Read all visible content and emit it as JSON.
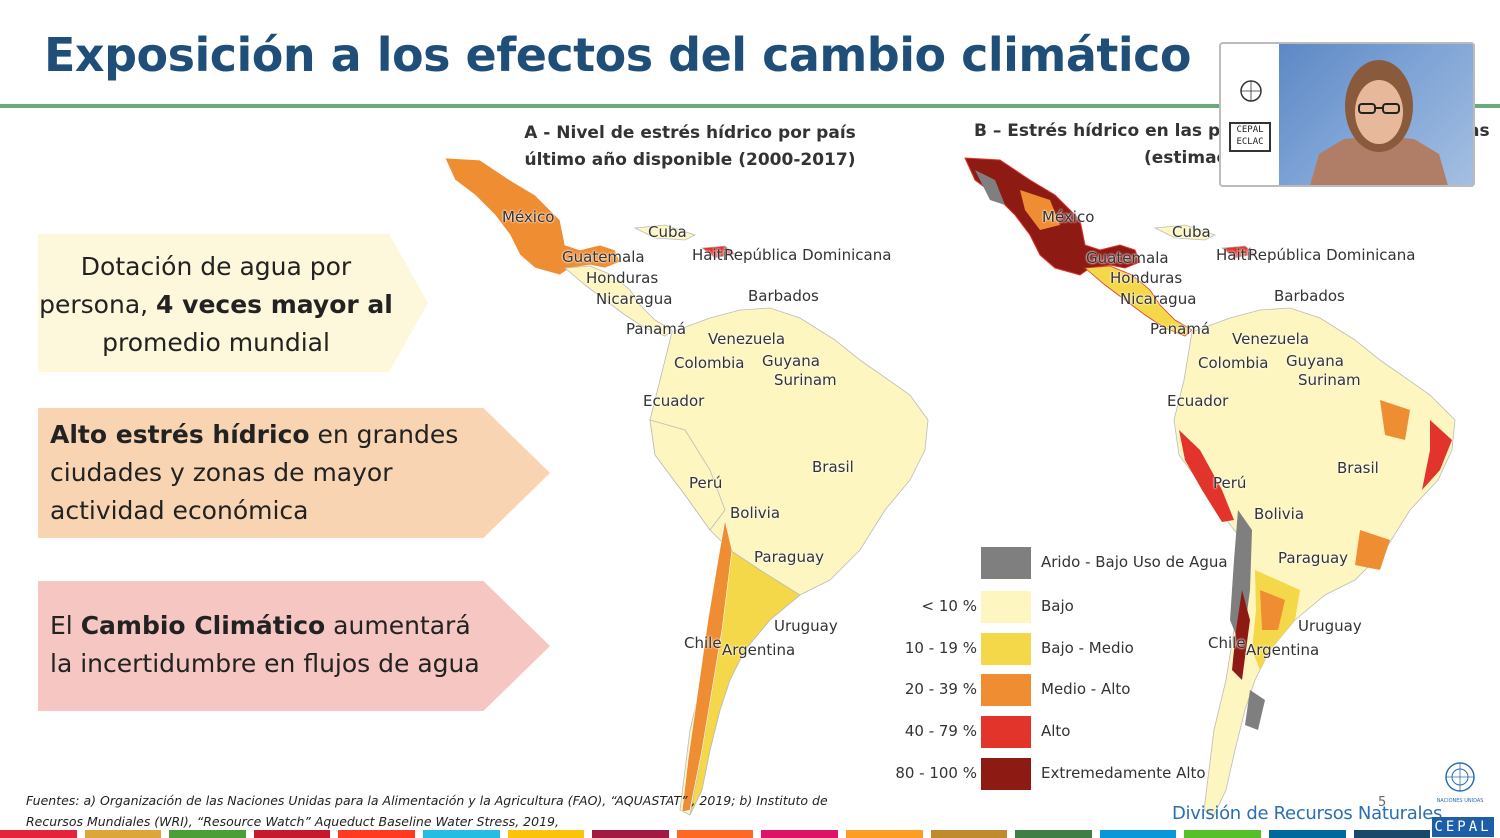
{
  "slide": {
    "title": "Exposición a los efectos del cambio climático",
    "page_number": "5"
  },
  "boxes": [
    {
      "pre": "Dotación de agua por persona, ",
      "bold": "4 veces mayor al",
      "post": " promedio mundial",
      "color": "#fdf8dc"
    },
    {
      "pre": "",
      "bold": "Alto estrés hídrico",
      "post": " en grandes ciudades y zonas de mayor actividad económica",
      "color": "#f9d4b3"
    },
    {
      "pre": "El ",
      "bold": "Cambio Climático",
      "post": " aumentará la incertidumbre en flujos de agua",
      "color": "#f6c6c3"
    }
  ],
  "map_a": {
    "title_line1": "A - Nivel de estrés hídrico por país",
    "title_line2": "último año disponible (2000-2017)"
  },
  "map_b": {
    "title_line1": "B – Estrés hídrico en las pri",
    "title_line1_end": "as",
    "title_line2": "(estimac"
  },
  "country_labels": {
    "mexico": "México",
    "cuba": "Cuba",
    "guatemala": "Guatemala",
    "haiti": "Haití",
    "republica_dominicana": "República Dominicana",
    "honduras": "Honduras",
    "nicaragua": "Nicaragua",
    "barbados": "Barbados",
    "panama": "Panamá",
    "venezuela": "Venezuela",
    "colombia": "Colombia",
    "guyana": "Guyana",
    "surinam": "Surinam",
    "ecuador": "Ecuador",
    "brasil": "Brasil",
    "peru": "Perú",
    "bolivia": "Bolivia",
    "paraguay": "Paraguay",
    "uruguay": "Uruguay",
    "chile": "Chile",
    "argentina": "Argentina"
  },
  "legend": [
    {
      "range": "",
      "label": "Arido - Bajo Uso de Agua",
      "color": "#7f7f7f"
    },
    {
      "range": "< 10 %",
      "label": "Bajo",
      "color": "#fdf6c0"
    },
    {
      "range": "10 - 19 %",
      "label": "Bajo - Medio",
      "color": "#f5d84a"
    },
    {
      "range": "20 - 39 %",
      "label": "Medio - Alto",
      "color": "#ef8d33"
    },
    {
      "range": "40 - 79 %",
      "label": "Alto",
      "color": "#e2342a"
    },
    {
      "range": "80 - 100 %",
      "label": "Extremedamente Alto",
      "color": "#8e1a14"
    }
  ],
  "sources": {
    "line1": "Fuentes: a) Organización de las Naciones Unidas para la Alimentación y la Agricultura (FAO),  “AQUASTAT” , 2019;  b) Instituto de",
    "line2": "Recursos Mundiales (WRI), “Resource Watch”  Aqueduct Baseline Water Stress, 2019,"
  },
  "footer": {
    "division": "División de Recursos Naturales",
    "cepal": "CEPAL",
    "un_caption": "NACIONES UNIDAS"
  },
  "video": {
    "cepal_line1": "CEPAL",
    "cepal_line2": "ECLAC"
  },
  "colors": {
    "title": "#1f4e79",
    "rule": "#6aaa7c",
    "division": "#2a6fb0",
    "sdg": [
      "#e5243b",
      "#dda63a",
      "#4c9f38",
      "#c5192d",
      "#ff3a21",
      "#26bde2",
      "#fcc30b",
      "#a21942",
      "#fd6925",
      "#dd1367",
      "#fd9d24",
      "#bf8b2e",
      "#3f7e44",
      "#0a97d9",
      "#56c02b",
      "#00689d",
      "#19486a"
    ]
  }
}
